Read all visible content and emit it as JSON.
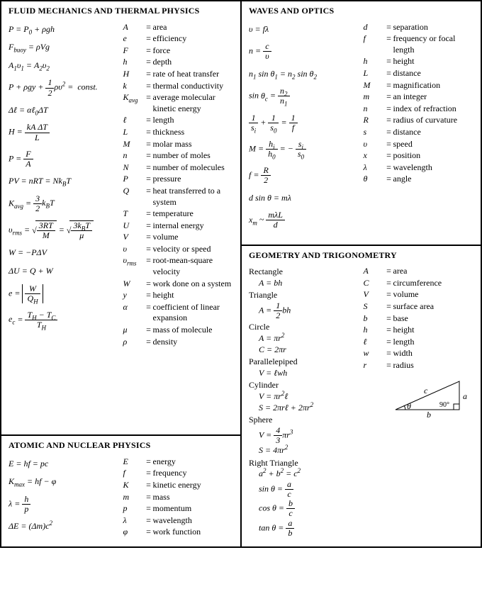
{
  "fluid": {
    "title": "FLUID MECHANICS AND THERMAL PHYSICS",
    "defs": [
      {
        "sym": "A",
        "txt": "area"
      },
      {
        "sym": "e",
        "txt": "efficiency"
      },
      {
        "sym": "F",
        "txt": "force"
      },
      {
        "sym": "h",
        "txt": "depth"
      },
      {
        "sym": "H",
        "txt": "rate of heat transfer"
      },
      {
        "sym": "k",
        "txt": "thermal conductivity"
      },
      {
        "sym": "K<sub>avg</sub>",
        "txt": "average molecular kinetic energy"
      },
      {
        "sym": "ℓ",
        "txt": "length"
      },
      {
        "sym": "L",
        "txt": "thickness"
      },
      {
        "sym": "M",
        "txt": "molar mass"
      },
      {
        "sym": "n",
        "txt": "number of moles"
      },
      {
        "sym": "N",
        "txt": "number of molecules"
      },
      {
        "sym": "P",
        "txt": "pressure"
      },
      {
        "sym": "Q",
        "txt": "heat transferred to a system"
      },
      {
        "sym": "T",
        "txt": "temperature"
      },
      {
        "sym": "U",
        "txt": "internal energy"
      },
      {
        "sym": "V",
        "txt": "volume"
      },
      {
        "sym": "υ",
        "txt": "velocity or speed"
      },
      {
        "sym": "υ<sub>rms</sub>",
        "txt": "root-mean-square velocity"
      },
      {
        "sym": "W",
        "txt": "work done on a system"
      },
      {
        "sym": "y",
        "txt": "height"
      },
      {
        "sym": "α",
        "txt": "coefficient of linear expansion"
      },
      {
        "sym": "μ",
        "txt": "mass of molecule"
      },
      {
        "sym": "ρ",
        "txt": "density"
      }
    ]
  },
  "atomic": {
    "title": "ATOMIC AND NUCLEAR PHYSICS",
    "defs": [
      {
        "sym": "E",
        "txt": "energy"
      },
      {
        "sym": "f",
        "txt": "frequency"
      },
      {
        "sym": "K",
        "txt": "kinetic energy"
      },
      {
        "sym": "m",
        "txt": "mass"
      },
      {
        "sym": "p",
        "txt": "momentum"
      },
      {
        "sym": "λ",
        "txt": "wavelength"
      },
      {
        "sym": "φ",
        "txt": "work function"
      }
    ]
  },
  "waves": {
    "title": "WAVES AND OPTICS",
    "defs": [
      {
        "sym": "d",
        "txt": "separation"
      },
      {
        "sym": "f",
        "txt": "frequency or focal length"
      },
      {
        "sym": "h",
        "txt": "height"
      },
      {
        "sym": "L",
        "txt": "distance"
      },
      {
        "sym": "M",
        "txt": "magnification"
      },
      {
        "sym": "m",
        "txt": "an integer"
      },
      {
        "sym": "n",
        "txt": "index of refraction"
      },
      {
        "sym": "R",
        "txt": "radius of curvature"
      },
      {
        "sym": "s",
        "txt": "distance"
      },
      {
        "sym": "υ",
        "txt": "speed"
      },
      {
        "sym": "x",
        "txt": "position"
      },
      {
        "sym": "λ",
        "txt": "wavelength"
      },
      {
        "sym": "θ",
        "txt": "angle"
      }
    ]
  },
  "geom": {
    "title": "GEOMETRY AND TRIGONOMETRY",
    "shapes": [
      {
        "name": "Rectangle",
        "formulas": [
          "A = bh"
        ]
      },
      {
        "name": "Triangle",
        "formulas": [
          "A = ½ bh"
        ]
      },
      {
        "name": "Circle",
        "formulas": [
          "A = πr²",
          "C = 2πr"
        ]
      },
      {
        "name": "Parallelepiped",
        "formulas": [
          "V = ℓwh"
        ]
      },
      {
        "name": "Cylinder",
        "formulas": [
          "V = πr²ℓ",
          "S = 2πrℓ + 2πr²"
        ]
      },
      {
        "name": "Sphere",
        "formulas": [
          "V = 4/3 πr³",
          "S = 4πr²"
        ]
      },
      {
        "name": "Right Triangle",
        "formulas": [
          "a² + b² = c²",
          "sinθ = a/c",
          "cosθ = b/c",
          "tanθ = a/b"
        ]
      }
    ],
    "defs": [
      {
        "sym": "A",
        "txt": "area"
      },
      {
        "sym": "C",
        "txt": "circumference"
      },
      {
        "sym": "V",
        "txt": "volume"
      },
      {
        "sym": "S",
        "txt": "surface area"
      },
      {
        "sym": "b",
        "txt": "base"
      },
      {
        "sym": "h",
        "txt": "height"
      },
      {
        "sym": "ℓ",
        "txt": "length"
      },
      {
        "sym": "w",
        "txt": "width"
      },
      {
        "sym": "r",
        "txt": "radius"
      }
    ],
    "triangle": {
      "a": "a",
      "b": "b",
      "c": "c",
      "angle": "θ",
      "right": "90°"
    }
  }
}
